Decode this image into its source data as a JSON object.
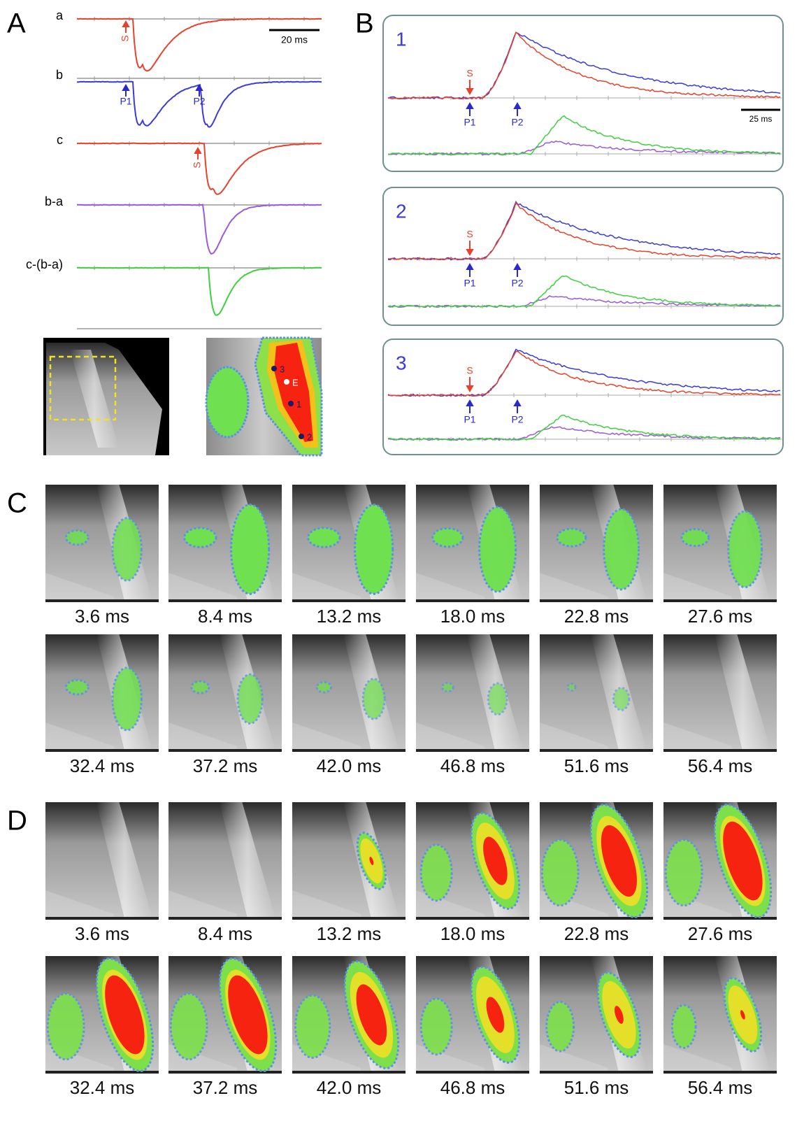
{
  "panel_A": {
    "label": "A",
    "traces": [
      {
        "label": "a",
        "arrows": [
          "S"
        ]
      },
      {
        "label": "b",
        "arrows": [
          "P1",
          "P2"
        ]
      },
      {
        "label": "c",
        "arrows": [
          "S"
        ]
      },
      {
        "label": "b-a"
      },
      {
        "label": "c-(b-a)"
      }
    ],
    "scale_bar": "20 ms",
    "map_labels": [
      "3",
      "E",
      "1",
      "2"
    ]
  },
  "panel_B": {
    "label": "B",
    "scale_bar": "25 ms",
    "insets": [
      {
        "number": "1",
        "arrows": [
          "S",
          "P1",
          "P2"
        ]
      },
      {
        "number": "2",
        "arrows": [
          "S",
          "P1",
          "P2"
        ]
      },
      {
        "number": "3",
        "arrows": [
          "S",
          "P1",
          "P2"
        ]
      }
    ]
  },
  "panel_C": {
    "label": "C",
    "frames": [
      "3.6 ms",
      "8.4 ms",
      "13.2 ms",
      "18.0 ms",
      "22.8 ms",
      "27.6 ms",
      "32.4 ms",
      "37.2 ms",
      "42.0 ms",
      "46.8 ms",
      "51.6 ms",
      "56.4 ms"
    ]
  },
  "panel_D": {
    "label": "D",
    "frames": [
      "3.6 ms",
      "8.4 ms",
      "13.2 ms",
      "18.0 ms",
      "22.8 ms",
      "27.6 ms",
      "32.4 ms",
      "37.2 ms",
      "42.0 ms",
      "46.8 ms",
      "51.6 ms",
      "56.4 ms"
    ]
  }
}
